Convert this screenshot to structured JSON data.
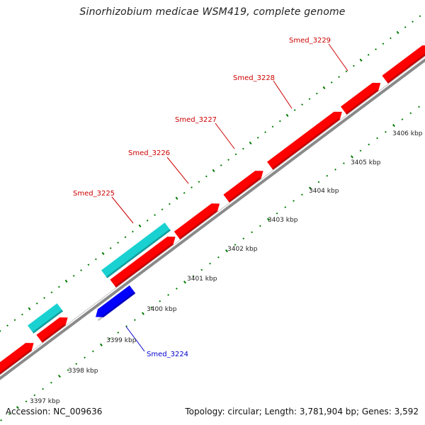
{
  "title": "Sinorhizobium medicae WSM419, complete genome",
  "accession": "Accession: NC_009636",
  "summary": "Topology: circular; Length: 3,781,904 bp; Genes: 3,592",
  "colors": {
    "forward_gene": "#ff0000",
    "reverse_gene": "#0000ff",
    "rna_feature": "#1ad1d1",
    "backbone": "#8a8a8a",
    "tick": "#007a00",
    "label_forward": "#cc0000",
    "label_reverse": "#0000cc"
  },
  "scale_labels": [
    "3397 kbp",
    "3398 kbp",
    "3399 kbp",
    "3400 kbp",
    "3401 kbp",
    "3402 kbp",
    "3403 kbp",
    "3404 kbp",
    "3405 kbp",
    "3406 kbp"
  ],
  "gene_labels": [
    {
      "text": "Smed_3224",
      "strand": "reverse"
    },
    {
      "text": "Smed_3225",
      "strand": "forward"
    },
    {
      "text": "Smed_3226",
      "strand": "forward"
    },
    {
      "text": "Smed_3227",
      "strand": "forward"
    },
    {
      "text": "Smed_3228",
      "strand": "forward"
    },
    {
      "text": "Smed_3229",
      "strand": "forward"
    }
  ]
}
